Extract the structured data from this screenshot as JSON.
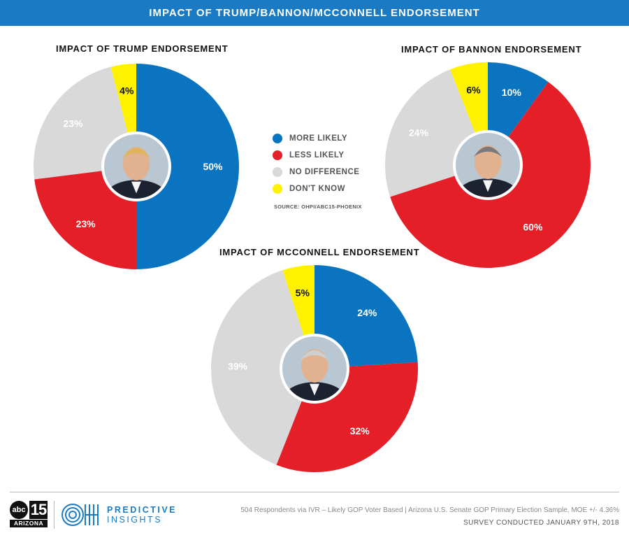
{
  "banner_title": "IMPACT OF TRUMP/BANNON/MCCONNELL ENDORSEMENT",
  "colors": {
    "more_likely": "#0a74c0",
    "less_likely": "#e41f27",
    "no_difference": "#d9d9d9",
    "dont_know": "#fff200"
  },
  "legend": [
    {
      "label": "MORE LIKELY",
      "color": "#0a74c0"
    },
    {
      "label": "LESS LIKELY",
      "color": "#e41f27"
    },
    {
      "label": "NO DIFFERENCE",
      "color": "#d9d9d9"
    },
    {
      "label": "DON'T KNOW",
      "color": "#fff200"
    }
  ],
  "source": "SOURCE: OHPI/ABC15-PHOENIX",
  "chart_data": [
    {
      "type": "pie",
      "title": "IMPACT OF TRUMP ENDORSEMENT",
      "categories": [
        "MORE LIKELY",
        "LESS LIKELY",
        "NO DIFFERENCE",
        "DON'T KNOW"
      ],
      "values": [
        50,
        23,
        23,
        4
      ],
      "labels": [
        "50%",
        "23%",
        "23%",
        "4%"
      ],
      "photo_subject": "Trump"
    },
    {
      "type": "pie",
      "title": "IMPACT OF BANNON ENDORSEMENT",
      "categories": [
        "MORE LIKELY",
        "LESS LIKELY",
        "NO DIFFERENCE",
        "DON'T KNOW"
      ],
      "values": [
        10,
        60,
        24,
        6
      ],
      "labels": [
        "10%",
        "60%",
        "24%",
        "6%"
      ],
      "photo_subject": "Bannon"
    },
    {
      "type": "pie",
      "title": "IMPACT OF MCCONNELL ENDORSEMENT",
      "categories": [
        "MORE LIKELY",
        "LESS LIKELY",
        "NO DIFFERENCE",
        "DON'T KNOW"
      ],
      "values": [
        24,
        32,
        39,
        5
      ],
      "labels": [
        "24%",
        "32%",
        "39%",
        "5%"
      ],
      "photo_subject": "McConnell"
    }
  ],
  "footer": {
    "abc_logo_abc": "abc",
    "abc_logo_num": "15",
    "abc_logo_sub": "ARIZONA",
    "oh_logo_text": "OH",
    "predictive": "PREDICTIVE",
    "insights": "INSIGHTS",
    "note_line1": "504 Respondents via IVR – Likely GOP Voter Based  |  Arizona U.S. Senate GOP Primary Election Sample, MOE +/- 4.36%",
    "note_line2": "SURVEY CONDUCTED JANUARY 9TH, 2018"
  }
}
